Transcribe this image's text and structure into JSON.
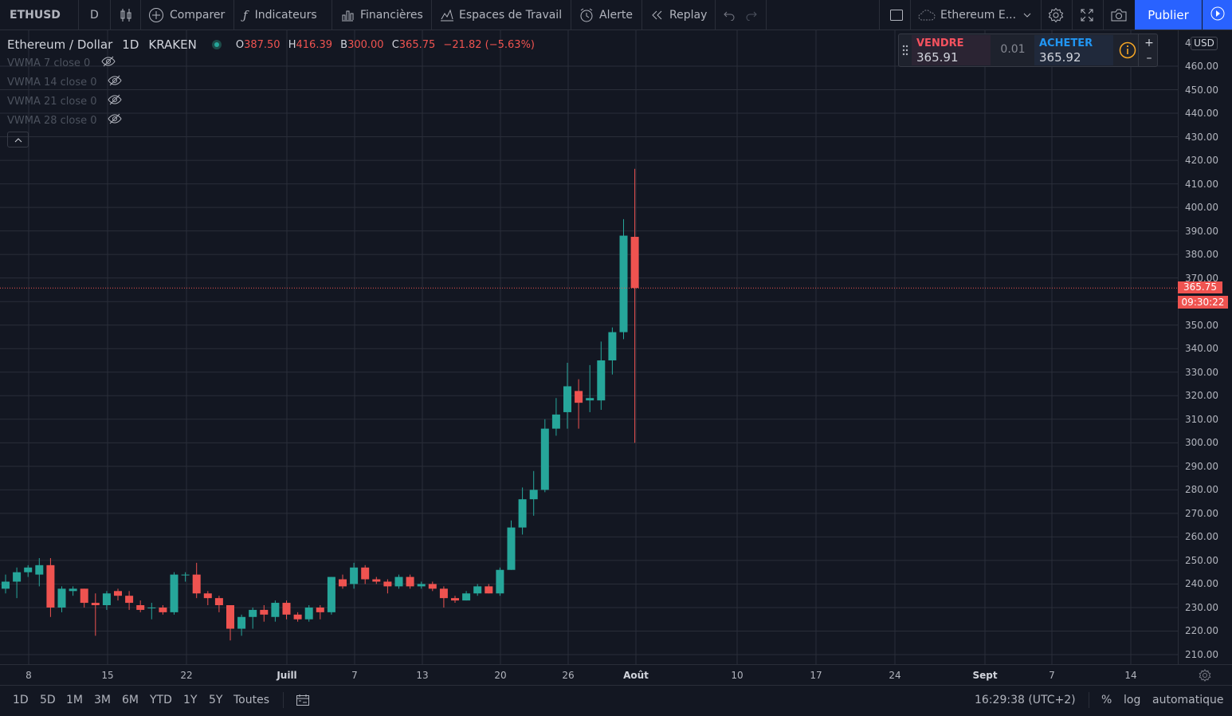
{
  "toolbar": {
    "symbol": "ETHUSD",
    "interval": "D",
    "compare": "Comparer",
    "indicators": "Indicateurs",
    "financials": "Financières",
    "workspaces": "Espaces de Travail",
    "alert": "Alerte",
    "replay": "Replay",
    "layout_name": "Ethereum E...",
    "publish": "Publier",
    "icons": [
      "candles-icon",
      "plus-circle-icon",
      "fx-icon",
      "financials-icon",
      "workspaces-icon",
      "alarm-icon",
      "replay-icon",
      "undo-icon",
      "redo-icon",
      "square-icon",
      "cloud-icon",
      "chevron-down-icon",
      "gear-icon",
      "fullscreen-icon",
      "camera-icon",
      "play-icon"
    ]
  },
  "legend": {
    "title": "Ethereum / Dollar",
    "interval": "1D",
    "exchange": "KRAKEN",
    "ohlc": {
      "o_label": "O",
      "o": "387.50",
      "h_label": "H",
      "h": "416.39",
      "b_label": "B",
      "b": "300.00",
      "c_label": "C",
      "c": "365.75",
      "change": "−21.82 (−5.63%)"
    },
    "indicators": [
      "VWMA 7 close 0",
      "VWMA 14 close 0",
      "VWMA 21 close 0",
      "VWMA 28 close 0"
    ]
  },
  "trade": {
    "sell_label": "VENDRE",
    "sell_price": "365.91",
    "qty": "0.01",
    "buy_label": "ACHETER",
    "buy_price": "365.92",
    "plus": "+",
    "minus": "–"
  },
  "price_axis": {
    "currency": "USD",
    "labels": [
      "460.00",
      "450.00",
      "440.00",
      "430.00",
      "420.00",
      "410.00",
      "400.00",
      "390.00",
      "380.00",
      "370.00",
      "360.00",
      "350.00",
      "340.00",
      "330.00",
      "320.00",
      "310.00",
      "300.00",
      "290.00",
      "280.00",
      "270.00",
      "260.00",
      "250.00",
      "240.00",
      "230.00",
      "220.00",
      "210.00"
    ],
    "top_partial": "4",
    "current_price": "365.75",
    "countdown": "09:30:22"
  },
  "date_axis": {
    "labels": [
      {
        "text": "8",
        "bold": false
      },
      {
        "text": "15",
        "bold": false
      },
      {
        "text": "22",
        "bold": false
      },
      {
        "text": "Juill",
        "bold": true
      },
      {
        "text": "7",
        "bold": false
      },
      {
        "text": "13",
        "bold": false
      },
      {
        "text": "20",
        "bold": false
      },
      {
        "text": "26",
        "bold": false
      },
      {
        "text": "Août",
        "bold": true
      },
      {
        "text": "10",
        "bold": false
      },
      {
        "text": "17",
        "bold": false
      },
      {
        "text": "24",
        "bold": false
      },
      {
        "text": "Sept",
        "bold": true
      },
      {
        "text": "7",
        "bold": false
      },
      {
        "text": "14",
        "bold": false
      }
    ]
  },
  "bottom": {
    "ranges": [
      "1D",
      "5D",
      "1M",
      "3M",
      "6M",
      "YTD",
      "1Y",
      "5Y",
      "Toutes"
    ],
    "clock": "16:29:38 (UTC+2)",
    "percent": "%",
    "log": "log",
    "auto": "automatique"
  },
  "colors": {
    "up": "#26a69a",
    "down": "#ef5350",
    "bg": "#131722",
    "grid": "#2a2e39",
    "accent": "#2962ff"
  },
  "chart_data": {
    "type": "candlestick",
    "ylim": [
      206,
      472
    ],
    "candles": [
      {
        "o": 238,
        "h": 244,
        "l": 236,
        "c": 241
      },
      {
        "o": 241,
        "h": 247,
        "l": 234,
        "c": 245
      },
      {
        "o": 245,
        "h": 248,
        "l": 243,
        "c": 247
      },
      {
        "o": 244,
        "h": 251,
        "l": 239,
        "c": 248
      },
      {
        "o": 248,
        "h": 251,
        "l": 226,
        "c": 230
      },
      {
        "o": 230,
        "h": 239,
        "l": 228,
        "c": 238
      },
      {
        "o": 237,
        "h": 239,
        "l": 235,
        "c": 238
      },
      {
        "o": 238,
        "h": 238,
        "l": 230,
        "c": 232
      },
      {
        "o": 232,
        "h": 236,
        "l": 218,
        "c": 231
      },
      {
        "o": 231,
        "h": 237,
        "l": 229,
        "c": 236
      },
      {
        "o": 237,
        "h": 238,
        "l": 233,
        "c": 235
      },
      {
        "o": 235,
        "h": 237,
        "l": 229,
        "c": 232
      },
      {
        "o": 231,
        "h": 233,
        "l": 228,
        "c": 229
      },
      {
        "o": 230,
        "h": 232,
        "l": 225,
        "c": 230
      },
      {
        "o": 230,
        "h": 231,
        "l": 227,
        "c": 228
      },
      {
        "o": 228,
        "h": 245,
        "l": 227,
        "c": 244
      },
      {
        "o": 244,
        "h": 245,
        "l": 241,
        "c": 244
      },
      {
        "o": 244,
        "h": 249,
        "l": 234,
        "c": 236
      },
      {
        "o": 236,
        "h": 237,
        "l": 231,
        "c": 234
      },
      {
        "o": 234,
        "h": 235,
        "l": 228,
        "c": 231
      },
      {
        "o": 231,
        "h": 231,
        "l": 216,
        "c": 221
      },
      {
        "o": 221,
        "h": 227,
        "l": 218,
        "c": 226
      },
      {
        "o": 226,
        "h": 230,
        "l": 221,
        "c": 229
      },
      {
        "o": 229,
        "h": 231,
        "l": 224,
        "c": 227
      },
      {
        "o": 226,
        "h": 233,
        "l": 224,
        "c": 232
      },
      {
        "o": 232,
        "h": 233,
        "l": 225,
        "c": 227
      },
      {
        "o": 227,
        "h": 228,
        "l": 224,
        "c": 225
      },
      {
        "o": 225,
        "h": 231,
        "l": 224,
        "c": 230
      },
      {
        "o": 230,
        "h": 231,
        "l": 225,
        "c": 228
      },
      {
        "o": 228,
        "h": 243,
        "l": 227,
        "c": 243
      },
      {
        "o": 242,
        "h": 244,
        "l": 238,
        "c": 239
      },
      {
        "o": 240,
        "h": 249,
        "l": 238,
        "c": 247
      },
      {
        "o": 247,
        "h": 248,
        "l": 240,
        "c": 242
      },
      {
        "o": 242,
        "h": 243,
        "l": 240,
        "c": 241
      },
      {
        "o": 241,
        "h": 242,
        "l": 236,
        "c": 239
      },
      {
        "o": 239,
        "h": 244,
        "l": 238,
        "c": 243
      },
      {
        "o": 243,
        "h": 244,
        "l": 238,
        "c": 239
      },
      {
        "o": 239,
        "h": 241,
        "l": 238,
        "c": 240
      },
      {
        "o": 240,
        "h": 241,
        "l": 237,
        "c": 238
      },
      {
        "o": 238,
        "h": 239,
        "l": 230,
        "c": 234
      },
      {
        "o": 234,
        "h": 235,
        "l": 232,
        "c": 233
      },
      {
        "o": 233,
        "h": 237,
        "l": 233,
        "c": 236
      },
      {
        "o": 236,
        "h": 240,
        "l": 235,
        "c": 239
      },
      {
        "o": 239,
        "h": 240,
        "l": 236,
        "c": 236
      },
      {
        "o": 236,
        "h": 247,
        "l": 235,
        "c": 246
      },
      {
        "o": 246,
        "h": 267,
        "l": 246,
        "c": 264
      },
      {
        "o": 264,
        "h": 281,
        "l": 261,
        "c": 276
      },
      {
        "o": 276,
        "h": 288,
        "l": 269,
        "c": 280
      },
      {
        "o": 280,
        "h": 310,
        "l": 279,
        "c": 306
      },
      {
        "o": 306,
        "h": 319,
        "l": 303,
        "c": 312
      },
      {
        "o": 313,
        "h": 334,
        "l": 306,
        "c": 324
      },
      {
        "o": 322,
        "h": 327,
        "l": 306,
        "c": 317
      },
      {
        "o": 318,
        "h": 333,
        "l": 313,
        "c": 319
      },
      {
        "o": 318,
        "h": 343,
        "l": 314,
        "c": 335
      },
      {
        "o": 335,
        "h": 349,
        "l": 329,
        "c": 347
      },
      {
        "o": 347,
        "h": 395,
        "l": 344,
        "c": 388
      },
      {
        "o": 387.5,
        "h": 416.39,
        "l": 300,
        "c": 365.75
      }
    ]
  }
}
